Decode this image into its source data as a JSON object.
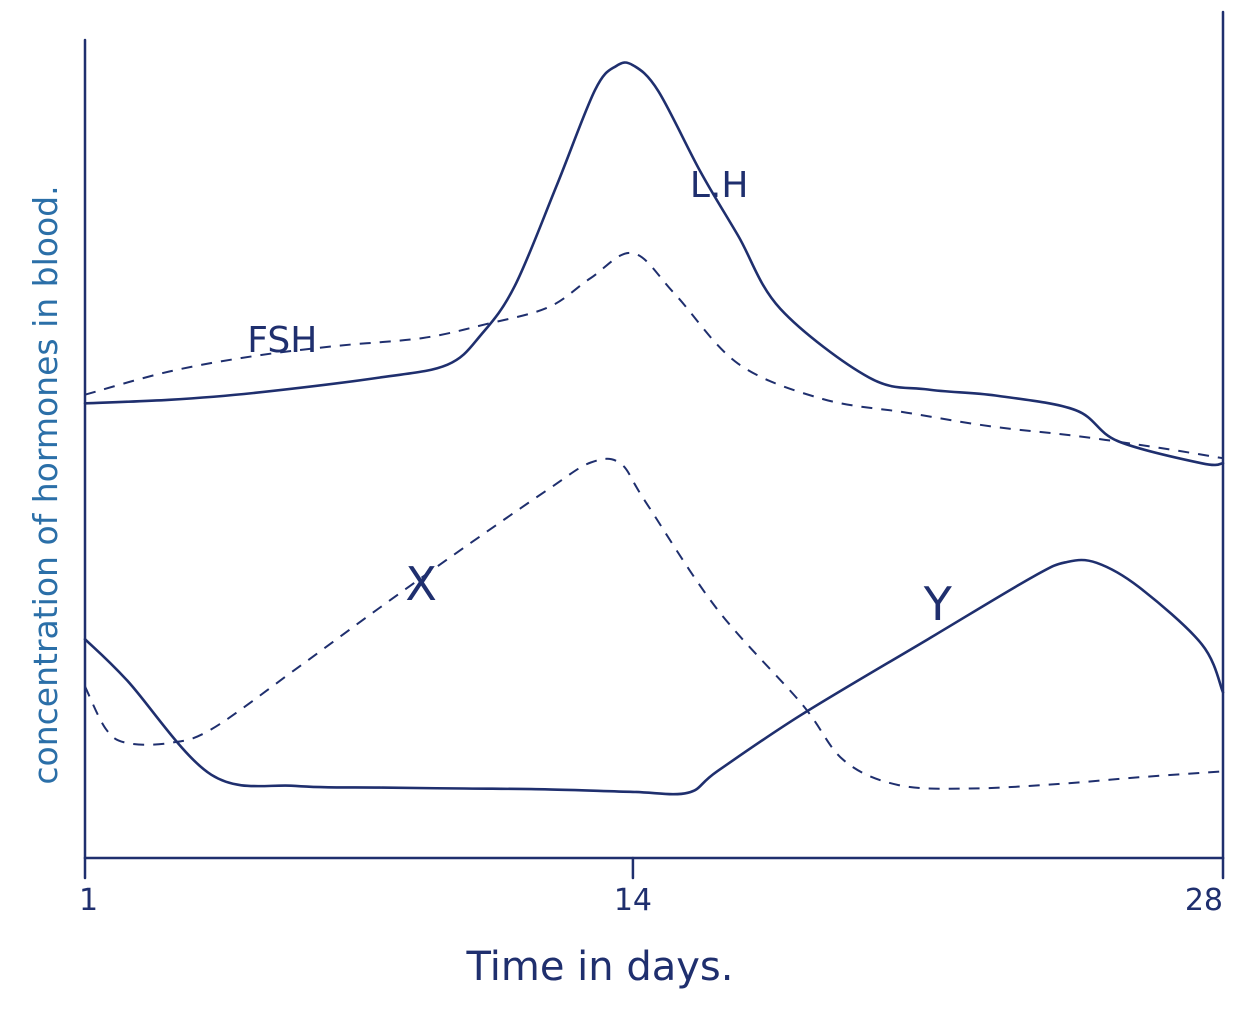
{
  "chart_data": {
    "type": "line",
    "title": "",
    "xlabel": "Time in days.",
    "ylabel": "concentration of hormones in blood.",
    "xlim": [
      1,
      28
    ],
    "ylim": [
      0,
      100
    ],
    "x_ticks": [
      "1",
      "14",
      "28"
    ],
    "grid": false,
    "colors": {
      "ink": "#1f2f6e",
      "ylabel": "#2b6fa8"
    },
    "series": [
      {
        "name": "L.H",
        "style": "solid",
        "x": [
          1,
          3,
          5,
          8,
          9.6,
          10.4,
          11.2,
          12.2,
          13.1,
          13.6,
          14,
          14.6,
          15.6,
          16.5,
          17.5,
          19.6,
          21,
          22.6,
          24.5,
          25.5,
          27.5,
          28
        ],
        "y": [
          53,
          53.4,
          54.2,
          56,
          57.5,
          61,
          66.7,
          78.5,
          89.5,
          92.3,
          92.4,
          89.4,
          80,
          72.5,
          64,
          56,
          54.6,
          53.9,
          52.2,
          48.6,
          46,
          46
        ]
      },
      {
        "name": "FSH",
        "style": "dashed",
        "x": [
          1,
          3,
          5,
          7,
          9,
          10.5,
          12,
          13,
          14,
          15,
          16.5,
          18.5,
          20.5,
          22.5,
          24.5,
          26.5,
          28
        ],
        "y": [
          54,
          56.7,
          58.5,
          59.7,
          60.6,
          62.2,
          64.2,
          67.6,
          70.5,
          65.7,
          57.6,
          53.5,
          51.9,
          50.3,
          49.2,
          47.8,
          46.6
        ]
      },
      {
        "name": "X",
        "style": "dashed",
        "x": [
          1,
          1.5,
          2,
          3,
          4,
          6,
          8,
          10,
          12,
          13,
          13.7,
          14.3,
          16,
          18,
          19,
          20.3,
          22,
          24,
          26,
          28
        ],
        "y": [
          20,
          15,
          13.4,
          13.4,
          15,
          22,
          29.2,
          36.2,
          43,
          46.1,
          46,
          41.5,
          29,
          18,
          11.4,
          8.5,
          8.1,
          8.6,
          9.4,
          10.1
        ]
      },
      {
        "name": "Y",
        "style": "solid",
        "x": [
          1,
          2,
          4,
          6,
          8,
          10,
          12,
          14,
          15.3,
          16,
          18,
          21,
          23.5,
          24.3,
          25,
          26,
          27.5,
          28
        ],
        "y": [
          25.5,
          20.7,
          9.7,
          8.4,
          8.2,
          8.1,
          8,
          7.7,
          7.6,
          10.1,
          16.7,
          25.5,
          32.8,
          34.5,
          34.4,
          31.6,
          24.9,
          19.3
        ]
      }
    ]
  }
}
